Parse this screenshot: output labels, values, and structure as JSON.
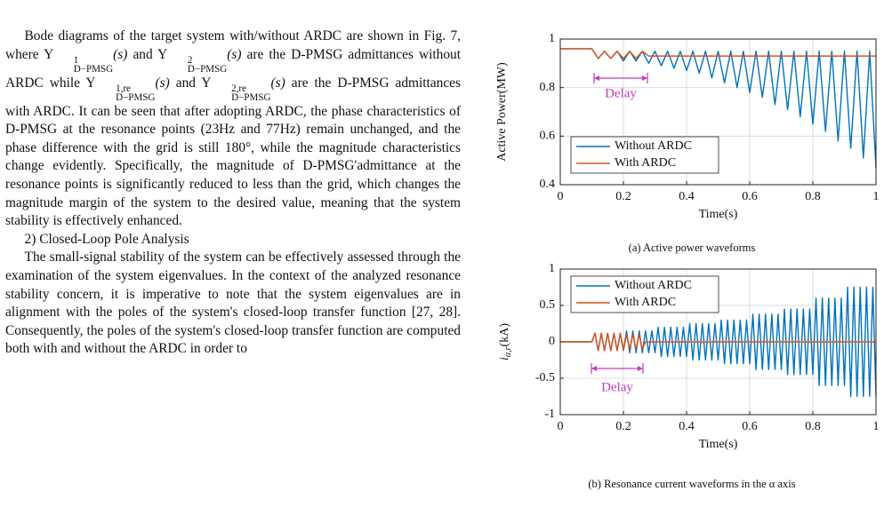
{
  "body": {
    "paragraphs": [
      {
        "segments": [
          "Bode diagrams of the target system with/without ARDC are shown in Fig. 7, where ",
          {
            "base": "Y",
            "sup": "1",
            "sub": "D−PMSG",
            "arg": "(s)"
          },
          " and ",
          {
            "base": "Y",
            "sup": "2",
            "sub": "D−PMSG",
            "arg": "(s)"
          },
          " are the D-PMSG admittances without ARDC while ",
          {
            "base": "Y",
            "sup": "1,re",
            "sub": "D−PMSG",
            "arg": "(s)"
          },
          " and ",
          {
            "base": "Y",
            "sup": "2,re",
            "sub": "D−PMSG",
            "arg": "(s)"
          },
          " are the D-PMSG admittances with ARDC. It can be seen that after adopting ARDC, the phase characteristics of D-PMSG at the resonance points (23Hz and 77Hz) remain unchanged, and the phase difference with the grid is still 180°, while the magnitude characteristics change evidently. Specifically, the magnitude of D-PMSG'admittance at the resonance points is significantly reduced to less than the grid, which changes the magnitude margin of the system to the desired value, meaning that the system stability is effectively enhanced."
        ]
      },
      {
        "segments": [
          "2) Closed-Loop Pole Analysis"
        ]
      },
      {
        "segments": [
          "The small-signal stability of the system can be effectively assessed through the examination of the system eigenvalues. In the context of the analyzed resonance stability concern, it is imperative to note that the system eigenvalues are in alignment with the poles of the system's closed-loop transfer function [27, 28]. Consequently, the poles of the system's closed-loop transfer function are computed both with and without the ARDC in order to"
        ]
      }
    ]
  },
  "chart_data": [
    {
      "type": "line",
      "xlabel": "Time(s)",
      "ylabel": "Active Power(MW)",
      "caption": "(a) Active power waveforms",
      "annotation": "Delay",
      "xlim": [
        0,
        1
      ],
      "ylim": [
        0.4,
        1
      ],
      "xticks": [
        0,
        0.2,
        0.4,
        0.6,
        0.8,
        1
      ],
      "yticks": [
        0.4,
        0.6,
        0.8,
        1
      ],
      "grid": true,
      "legend": "lower left",
      "x": [
        0,
        0.1,
        0.12,
        0.14,
        0.16,
        0.18,
        0.2,
        0.22,
        0.24,
        0.26,
        0.28,
        0.3,
        0.32,
        0.34,
        0.36,
        0.38,
        0.4,
        0.42,
        0.44,
        0.46,
        0.48,
        0.5,
        0.52,
        0.54,
        0.56,
        0.58,
        0.6,
        0.62,
        0.64,
        0.66,
        0.68,
        0.7,
        0.72,
        0.74,
        0.76,
        0.78,
        0.8,
        0.82,
        0.84,
        0.86,
        0.88,
        0.9,
        0.92,
        0.94,
        0.96,
        0.98,
        1.0
      ],
      "series": [
        {
          "name": "Without ARDC",
          "color": "#0072bd",
          "values": [
            0.96,
            0.96,
            0.92,
            0.95,
            0.92,
            0.95,
            0.91,
            0.95,
            0.91,
            0.95,
            0.9,
            0.95,
            0.89,
            0.95,
            0.88,
            0.95,
            0.87,
            0.95,
            0.86,
            0.95,
            0.84,
            0.95,
            0.82,
            0.95,
            0.8,
            0.95,
            0.78,
            0.95,
            0.76,
            0.95,
            0.73,
            0.95,
            0.71,
            0.95,
            0.68,
            0.95,
            0.65,
            0.95,
            0.62,
            0.95,
            0.58,
            0.95,
            0.55,
            0.95,
            0.51,
            0.95,
            0.47
          ]
        },
        {
          "name": "With ARDC",
          "color": "#d95319",
          "values": [
            0.96,
            0.96,
            0.92,
            0.95,
            0.92,
            0.95,
            0.92,
            0.95,
            0.92,
            0.95,
            0.93,
            0.93,
            0.93,
            0.93,
            0.93,
            0.93,
            0.93,
            0.93,
            0.93,
            0.93,
            0.93,
            0.93,
            0.93,
            0.93,
            0.93,
            0.93,
            0.93,
            0.93,
            0.93,
            0.93,
            0.93,
            0.93,
            0.93,
            0.93,
            0.93,
            0.93,
            0.93,
            0.93,
            0.93,
            0.93,
            0.93,
            0.93,
            0.93,
            0.93,
            0.93,
            0.93,
            0.93
          ]
        }
      ]
    },
    {
      "type": "line",
      "xlabel": "Time(s)",
      "ylabel": {
        "symbol": "i",
        "subscript": "α,r",
        "unit": "(kA)"
      },
      "caption": "(b) Resonance current waveforms in the α axis",
      "annotation": "Delay",
      "xlim": [
        0,
        1
      ],
      "ylim": [
        -1,
        1
      ],
      "xticks": [
        0,
        0.2,
        0.4,
        0.6,
        0.8,
        1
      ],
      "yticks": [
        -1,
        -0.5,
        0,
        0.5,
        1
      ],
      "grid": true,
      "legend": "upper left",
      "x": [
        0,
        0.1,
        0.11,
        0.12,
        0.13,
        0.14,
        0.15,
        0.16,
        0.17,
        0.18,
        0.19,
        0.2,
        0.21,
        0.22,
        0.23,
        0.24,
        0.25,
        0.26,
        0.27,
        0.28,
        0.29,
        0.3,
        0.31,
        0.32,
        0.33,
        0.34,
        0.35,
        0.36,
        0.37,
        0.38,
        0.39,
        0.4,
        0.41,
        0.42,
        0.43,
        0.44,
        0.45,
        0.46,
        0.47,
        0.48,
        0.49,
        0.5,
        0.51,
        0.52,
        0.53,
        0.54,
        0.55,
        0.56,
        0.57,
        0.58,
        0.59,
        0.6,
        0.61,
        0.62,
        0.63,
        0.64,
        0.65,
        0.66,
        0.67,
        0.68,
        0.69,
        0.7,
        0.71,
        0.72,
        0.73,
        0.74,
        0.75,
        0.76,
        0.77,
        0.78,
        0.79,
        0.8,
        0.81,
        0.82,
        0.83,
        0.84,
        0.85,
        0.86,
        0.87,
        0.88,
        0.89,
        0.9,
        0.91,
        0.92,
        0.93,
        0.94,
        0.95,
        0.96,
        0.97,
        0.98,
        0.99,
        1.0
      ],
      "series": [
        {
          "name": "Without ARDC",
          "color": "#0072bd",
          "values": [
            0,
            0,
            0.12,
            -0.12,
            0.12,
            -0.12,
            0.12,
            -0.12,
            0.12,
            -0.12,
            0.12,
            -0.12,
            0.15,
            -0.15,
            0.15,
            -0.15,
            0.15,
            -0.15,
            0.15,
            -0.15,
            0.15,
            -0.15,
            0.2,
            -0.2,
            0.2,
            -0.2,
            0.2,
            -0.2,
            0.2,
            -0.2,
            0.2,
            -0.2,
            0.25,
            -0.25,
            0.25,
            -0.25,
            0.25,
            -0.25,
            0.25,
            -0.25,
            0.25,
            -0.25,
            0.3,
            -0.3,
            0.3,
            -0.3,
            0.3,
            -0.3,
            0.3,
            -0.3,
            0.3,
            -0.3,
            0.38,
            -0.38,
            0.38,
            -0.38,
            0.38,
            -0.38,
            0.38,
            -0.38,
            0.38,
            -0.38,
            0.45,
            -0.45,
            0.45,
            -0.45,
            0.45,
            -0.45,
            0.45,
            -0.45,
            0.45,
            -0.45,
            0.6,
            -0.6,
            0.6,
            -0.6,
            0.6,
            -0.6,
            0.6,
            -0.6,
            0.6,
            -0.6,
            0.75,
            -0.75,
            0.75,
            -0.75,
            0.75,
            -0.75,
            0.75,
            -0.75,
            0.75,
            -0.75
          ]
        },
        {
          "name": "With ARDC",
          "color": "#d95319",
          "values": [
            0,
            0,
            0.12,
            -0.12,
            0.12,
            -0.12,
            0.12,
            -0.12,
            0.12,
            -0.12,
            0.12,
            -0.12,
            0.1,
            -0.1,
            0.1,
            -0.1,
            0.1,
            -0.1,
            0,
            0,
            0,
            0,
            0,
            0,
            0,
            0,
            0,
            0,
            0,
            0,
            0,
            0,
            0,
            0,
            0,
            0,
            0,
            0,
            0,
            0,
            0,
            0,
            0,
            0,
            0,
            0,
            0,
            0,
            0,
            0,
            0,
            0,
            0,
            0,
            0,
            0,
            0,
            0,
            0,
            0,
            0,
            0,
            0,
            0,
            0,
            0,
            0,
            0,
            0,
            0,
            0,
            0,
            0,
            0,
            0,
            0,
            0,
            0,
            0,
            0,
            0,
            0,
            0,
            0,
            0,
            0,
            0,
            0,
            0,
            0,
            0,
            0
          ]
        }
      ]
    }
  ]
}
